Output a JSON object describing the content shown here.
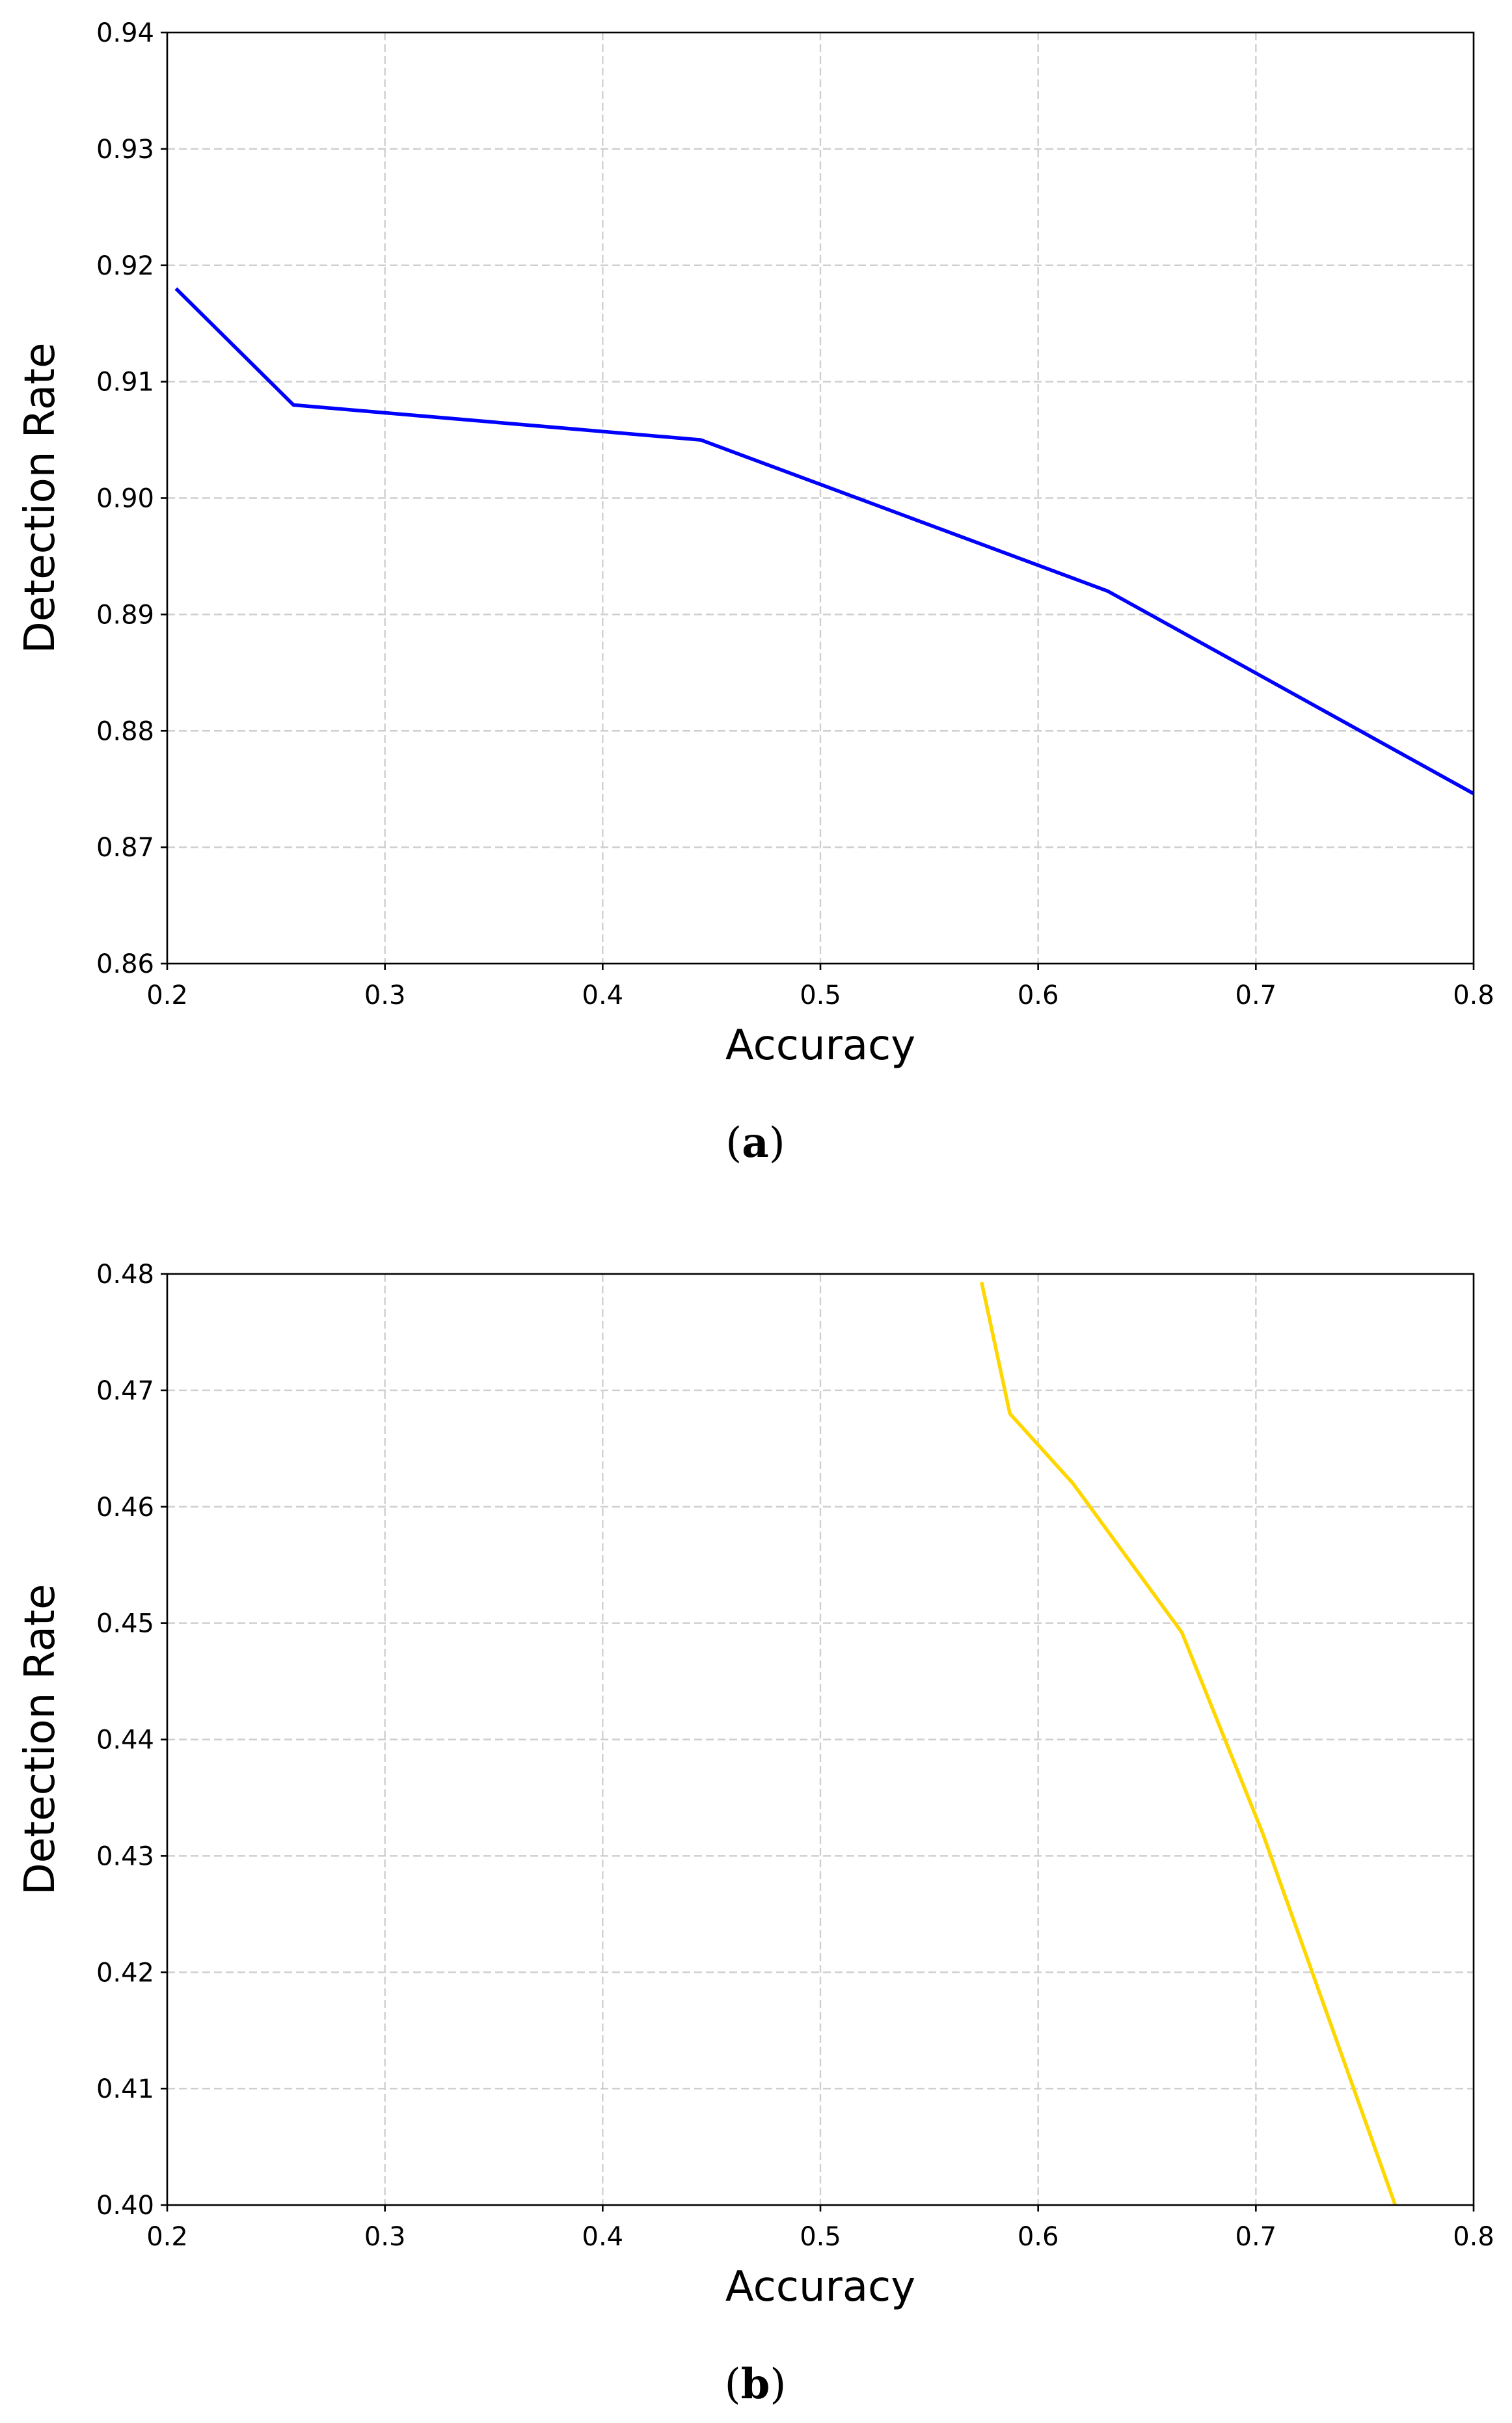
{
  "chart_data": [
    {
      "type": "line",
      "caption": "a",
      "xlabel": "Accuracy",
      "ylabel": "Detection Rate",
      "xlim": [
        0.2,
        0.8
      ],
      "ylim": [
        0.86,
        0.94
      ],
      "xticks": [
        "0.2",
        "0.3",
        "0.4",
        "0.5",
        "0.6",
        "0.7",
        "0.8"
      ],
      "yticks": [
        "0.86",
        "0.87",
        "0.88",
        "0.89",
        "0.90",
        "0.91",
        "0.92",
        "0.93",
        "0.94"
      ],
      "grid": true,
      "series": [
        {
          "color": "#0000ff",
          "x": [
            0.204,
            0.258,
            0.445,
            0.632,
            0.8
          ],
          "y": [
            0.918,
            0.908,
            0.905,
            0.892,
            0.8746
          ]
        }
      ]
    },
    {
      "type": "line",
      "caption": "b",
      "xlabel": "Accuracy",
      "ylabel": "Detection Rate",
      "xlim": [
        0.2,
        0.8
      ],
      "ylim": [
        0.4,
        0.48
      ],
      "xticks": [
        "0.2",
        "0.3",
        "0.4",
        "0.5",
        "0.6",
        "0.7",
        "0.8"
      ],
      "yticks": [
        "0.40",
        "0.41",
        "0.42",
        "0.43",
        "0.44",
        "0.45",
        "0.46",
        "0.47",
        "0.48"
      ],
      "grid": true,
      "series": [
        {
          "color": "#ffd700",
          "x": [
            0.574,
            0.587,
            0.616,
            0.666,
            0.703,
            0.764
          ],
          "y": [
            0.4793,
            0.468,
            0.462,
            0.4492,
            0.432,
            0.4
          ]
        }
      ]
    }
  ]
}
